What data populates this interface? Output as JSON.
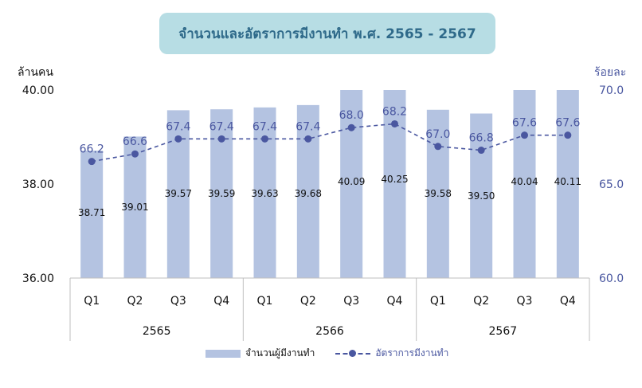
{
  "title": "จำนวนและอัตราการมีงานทำ  พ.ศ. 2565 - 2567",
  "left_unit": "ล้านคน",
  "right_unit": "ร้อยละ",
  "legend": {
    "bar": "จำนวนผู้มีงานทำ",
    "line": "อัตราการมีงานทำ"
  },
  "colors": {
    "bar": "#b4c3e1",
    "line": "#4a57a0",
    "title_bg": "#b7dde4",
    "title_text": "#2f6a8a"
  },
  "chart_data": {
    "type": "bar",
    "categories": [
      "Q1",
      "Q2",
      "Q3",
      "Q4",
      "Q1",
      "Q2",
      "Q3",
      "Q4",
      "Q1",
      "Q2",
      "Q3",
      "Q4"
    ],
    "groups": [
      {
        "label": "2565",
        "count": 4
      },
      {
        "label": "2566",
        "count": 4
      },
      {
        "label": "2567",
        "count": 4
      }
    ],
    "series": [
      {
        "name": "จำนวนผู้มีงานทำ",
        "type": "bar",
        "axis": "left",
        "values": [
          38.71,
          39.01,
          39.57,
          39.59,
          39.63,
          39.68,
          40.09,
          40.25,
          39.58,
          39.5,
          40.04,
          40.11
        ],
        "labels": [
          "38.71",
          "39.01",
          "39.57",
          "39.59",
          "39.63",
          "39.68",
          "40.09",
          "40.25",
          "39.58",
          "39.50",
          "40.04",
          "40.11"
        ]
      },
      {
        "name": "อัตราการมีงานทำ",
        "type": "line",
        "axis": "right",
        "values": [
          66.2,
          66.6,
          67.4,
          67.4,
          67.4,
          67.4,
          68.0,
          68.2,
          67.0,
          66.8,
          67.6,
          67.6
        ],
        "labels": [
          "66.2",
          "66.6",
          "67.4",
          "67.4",
          "67.4",
          "67.4",
          "68.0",
          "68.2",
          "67.0",
          "66.8",
          "67.6",
          "67.6"
        ]
      }
    ],
    "left_axis": {
      "range": [
        36,
        40
      ],
      "ticks": [
        "36.00",
        "38.00",
        "40.00"
      ],
      "tick_values": [
        36,
        38,
        40
      ]
    },
    "right_axis": {
      "range": [
        60,
        70
      ],
      "ticks": [
        "60.0",
        "65.0",
        "70.0"
      ],
      "tick_values": [
        60,
        65,
        70
      ]
    },
    "grid": false,
    "legend_position": "bottom"
  }
}
